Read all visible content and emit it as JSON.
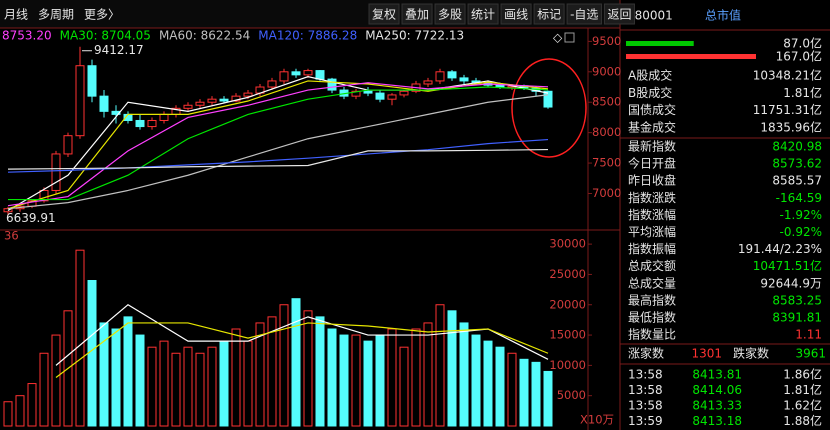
{
  "toolbar": {
    "left": [
      "月线",
      "多周期",
      "更多〉"
    ],
    "right": [
      "复权",
      "叠加",
      "多股",
      "统计",
      "画线",
      "标记",
      "-自选",
      "返回"
    ]
  },
  "ma_legend": [
    {
      "text": "8753.20",
      "color": "#ff40ff"
    },
    {
      "text": "MA30: 8704.05",
      "color": "#00e600"
    },
    {
      "text": "MA60: 8622.54",
      "color": "#c0c0c0"
    },
    {
      "text": "MA120: 7886.28",
      "color": "#4060ff"
    },
    {
      "text": "MA250: 7722.13",
      "color": "#e6e6e6"
    }
  ],
  "price": {
    "ylim": [
      6400,
      9720
    ],
    "yticks": [
      9500,
      9000,
      8500,
      8000,
      7500,
      7000
    ],
    "high_label": "9412.17",
    "low_label": "6639.91",
    "up_color": "#ff3232",
    "down_color": "#54fcfc",
    "candles": [
      [
        6700,
        6780,
        6639.91,
        6750
      ],
      [
        6750,
        6820,
        6700,
        6790
      ],
      [
        6790,
        6900,
        6760,
        6880
      ],
      [
        6880,
        7100,
        6850,
        7050
      ],
      [
        7050,
        7700,
        7000,
        7650
      ],
      [
        7650,
        8000,
        7600,
        7950
      ],
      [
        7950,
        9412.17,
        7900,
        9100
      ],
      [
        9100,
        9200,
        8500,
        8600
      ],
      [
        8600,
        8700,
        8250,
        8350
      ],
      [
        8350,
        8450,
        8150,
        8300
      ],
      [
        8300,
        8350,
        8150,
        8200
      ],
      [
        8200,
        8300,
        8050,
        8100
      ],
      [
        8100,
        8250,
        8050,
        8200
      ],
      [
        8200,
        8350,
        8150,
        8300
      ],
      [
        8300,
        8450,
        8250,
        8400
      ],
      [
        8400,
        8500,
        8350,
        8450
      ],
      [
        8450,
        8550,
        8400,
        8500
      ],
      [
        8500,
        8600,
        8450,
        8550
      ],
      [
        8550,
        8600,
        8480,
        8520
      ],
      [
        8520,
        8650,
        8500,
        8600
      ],
      [
        8600,
        8700,
        8550,
        8650
      ],
      [
        8650,
        8800,
        8600,
        8750
      ],
      [
        8750,
        8900,
        8700,
        8850
      ],
      [
        8850,
        9050,
        8800,
        9000
      ],
      [
        9000,
        9050,
        8900,
        8950
      ],
      [
        8950,
        9050,
        8900,
        9020
      ],
      [
        9020,
        9030,
        8850,
        8880
      ],
      [
        8880,
        8900,
        8650,
        8700
      ],
      [
        8700,
        8750,
        8550,
        8600
      ],
      [
        8600,
        8720,
        8550,
        8680
      ],
      [
        8680,
        8750,
        8600,
        8650
      ],
      [
        8650,
        8700,
        8500,
        8550
      ],
      [
        8550,
        8650,
        8450,
        8620
      ],
      [
        8620,
        8700,
        8580,
        8680
      ],
      [
        8680,
        8850,
        8650,
        8800
      ],
      [
        8800,
        8900,
        8750,
        8850
      ],
      [
        8850,
        9050,
        8800,
        9000
      ],
      [
        9000,
        9030,
        8850,
        8900
      ],
      [
        8900,
        8950,
        8800,
        8850
      ],
      [
        8850,
        8900,
        8780,
        8820
      ],
      [
        8820,
        8860,
        8750,
        8780
      ],
      [
        8780,
        8820,
        8720,
        8750
      ],
      [
        8750,
        8800,
        8700,
        8770
      ],
      [
        8770,
        8790,
        8700,
        8730
      ],
      [
        8730,
        8760,
        8600,
        8680
      ],
      [
        8680,
        8690,
        8391.81,
        8420.98
      ]
    ],
    "ma_lines": [
      {
        "color": "#ffffff",
        "x": [
          0,
          5,
          10,
          15,
          20,
          25,
          30,
          35,
          40,
          45
        ],
        "values": [
          6720,
          7300,
          8500,
          8350,
          8580,
          8920,
          8700,
          8700,
          8850,
          8650
        ]
      },
      {
        "color": "#e6e600",
        "x": [
          0,
          5,
          10,
          15,
          20,
          25,
          30,
          35,
          40,
          45
        ],
        "values": [
          6750,
          7050,
          8300,
          8300,
          8520,
          8850,
          8800,
          8680,
          8830,
          8720
        ]
      },
      {
        "color": "#ff40ff",
        "x": [
          0,
          5,
          10,
          15,
          20,
          25,
          30,
          35,
          40,
          45
        ],
        "values": [
          6800,
          6950,
          7700,
          8250,
          8450,
          8700,
          8820,
          8720,
          8800,
          8753.2
        ]
      },
      {
        "color": "#00e600",
        "x": [
          0,
          5,
          10,
          15,
          20,
          25,
          30,
          35,
          40,
          45
        ],
        "values": [
          6900,
          6900,
          7300,
          7900,
          8300,
          8550,
          8700,
          8700,
          8750,
          8704.05
        ]
      },
      {
        "color": "#c0c0c0",
        "x": [
          0,
          5,
          10,
          15,
          20,
          25,
          30,
          35,
          40,
          45
        ],
        "values": [
          6750,
          6850,
          7050,
          7300,
          7600,
          7900,
          8100,
          8300,
          8500,
          8622.54
        ]
      },
      {
        "color": "#4060ff",
        "x": [
          0,
          5,
          10,
          15,
          20,
          25,
          30,
          35,
          40,
          45
        ],
        "values": [
          7350,
          7380,
          7420,
          7470,
          7520,
          7580,
          7650,
          7720,
          7820,
          7886.28
        ]
      },
      {
        "color": "#e6e6e6",
        "x": [
          0,
          5,
          10,
          15,
          20,
          25,
          30,
          35,
          40,
          45
        ],
        "values": [
          7400,
          7410,
          7420,
          7440,
          7450,
          7460,
          7700,
          7700,
          7710,
          7722.13
        ]
      }
    ]
  },
  "volume": {
    "label": "36",
    "unit": "X10万",
    "ylim": [
      0,
      32000
    ],
    "yticks": [
      30000,
      25000,
      20000,
      15000,
      10000,
      5000
    ],
    "values": [
      4000,
      5000,
      7000,
      12000,
      15000,
      19000,
      29000,
      24000,
      17000,
      16000,
      18000,
      15000,
      13000,
      14000,
      12000,
      13000,
      12000,
      13000,
      14000,
      16000,
      14000,
      17000,
      18000,
      20000,
      21000,
      19000,
      18000,
      16000,
      15000,
      15000,
      14000,
      15000,
      16000,
      13000,
      16000,
      17000,
      20000,
      19000,
      17000,
      15000,
      14000,
      13000,
      12000,
      11000,
      10500,
      9000
    ],
    "ma_lines": [
      {
        "color": "#ffffff",
        "x": [
          4,
          10,
          15,
          20,
          25,
          30,
          35,
          40,
          45
        ],
        "values": [
          10000,
          20000,
          14000,
          14000,
          18000,
          15000,
          15000,
          16000,
          11000
        ]
      },
      {
        "color": "#e6e600",
        "x": [
          4,
          10,
          15,
          20,
          25,
          30,
          35,
          40,
          45
        ],
        "values": [
          8000,
          17000,
          17000,
          14500,
          17000,
          16500,
          15500,
          16000,
          12000
        ]
      }
    ]
  },
  "panel": {
    "code": "880001",
    "title": "总市值",
    "bars": [
      {
        "value": 87.0,
        "label": "87.0亿",
        "color": "#00c800"
      },
      {
        "value": 167.0,
        "label": "167.0亿",
        "color": "#ff3232"
      }
    ],
    "rows": [
      {
        "label": "A股成交",
        "value": "10348.21亿",
        "color": "#e6e6e6"
      },
      {
        "label": "B股成交",
        "value": "1.81亿",
        "color": "#e6e6e6"
      },
      {
        "label": "国债成交",
        "value": "11751.31亿",
        "color": "#e6e6e6"
      },
      {
        "label": "基金成交",
        "value": "1835.96亿",
        "color": "#e6e6e6"
      }
    ],
    "stats": [
      {
        "label": "最新指数",
        "value": "8420.98",
        "color": "#00e600"
      },
      {
        "label": "今日开盘",
        "value": "8573.62",
        "color": "#00e600"
      },
      {
        "label": "昨日收盘",
        "value": "8585.57",
        "color": "#e6e6e6"
      },
      {
        "label": "指数涨跌",
        "value": "-164.59",
        "color": "#00e600"
      },
      {
        "label": "指数涨幅",
        "value": "-1.92%",
        "color": "#00e600"
      },
      {
        "label": "平均涨幅",
        "value": "-0.92%",
        "color": "#00e600"
      },
      {
        "label": "指数振幅",
        "value": "191.44/2.23%",
        "color": "#e6e6e6"
      },
      {
        "label": "总成交额",
        "value": "10471.51亿",
        "color": "#00e600"
      },
      {
        "label": "总成交量",
        "value": "92644.9万",
        "color": "#e6e6e6"
      },
      {
        "label": "最高指数",
        "value": "8583.25",
        "color": "#00e600"
      },
      {
        "label": "最低指数",
        "value": "8391.81",
        "color": "#00e600"
      },
      {
        "label": "指数量比",
        "value": "1.11",
        "color": "#ff3232"
      }
    ],
    "breadth": {
      "up_label": "涨家数",
      "up": "1301",
      "down_label": "跌家数",
      "down": "3961"
    },
    "ticks": [
      [
        "13:58",
        "8413.81",
        "1.86亿"
      ],
      [
        "13:58",
        "8414.06",
        "1.81亿"
      ],
      [
        "13:58",
        "8413.33",
        "1.62亿"
      ],
      [
        "13:59",
        "8413.18",
        "1.88亿"
      ]
    ]
  }
}
